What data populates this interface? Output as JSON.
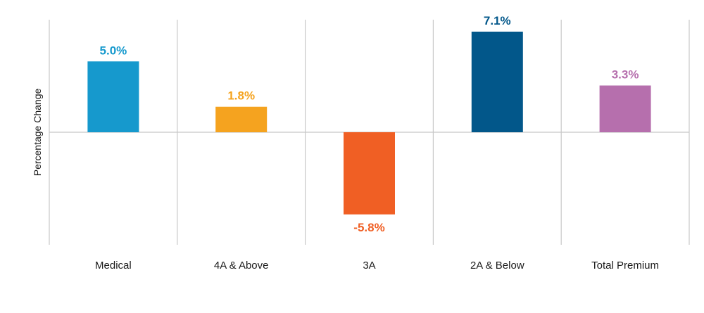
{
  "chart_data": {
    "type": "bar",
    "title": "",
    "xlabel": "",
    "ylabel": "Percentage Change",
    "ylim": [
      -9.1,
      7.1
    ],
    "grid": "vertical separators between categories",
    "legend": "none",
    "categories": [
      "Medical",
      "4A & Above",
      "3A",
      "2A & Below",
      "Total Premium"
    ],
    "values": [
      5.0,
      1.8,
      -5.8,
      7.1,
      3.3
    ],
    "value_labels": [
      "5.0%",
      "1.8%",
      "-5.8%",
      "7.1%",
      "3.3%"
    ],
    "colors": [
      "#1699cd",
      "#f5a31f",
      "#f05f24",
      "#02578a",
      "#b66fad"
    ],
    "axis_color": "#c8c8c8"
  }
}
